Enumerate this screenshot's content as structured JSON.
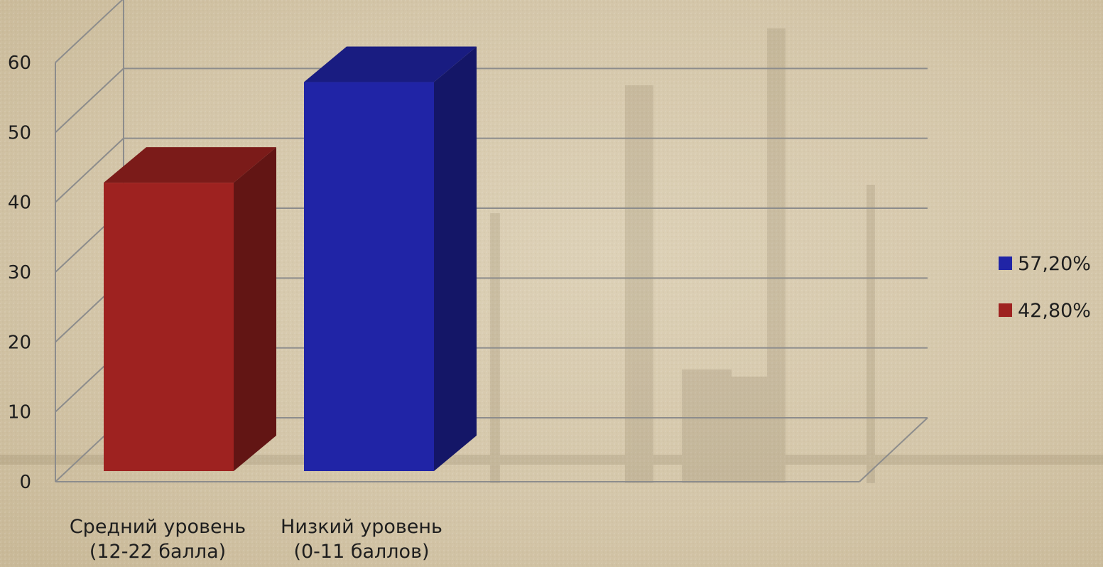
{
  "chart_data": {
    "type": "bar",
    "categories": [
      [
        "Средний уровень",
        "(12-22 балла)"
      ],
      [
        "Низкий уровень",
        "(0-11 баллов)"
      ]
    ],
    "values": [
      42.8,
      57.2
    ],
    "colors": [
      "#9e2220",
      "#2024a6"
    ],
    "ylim": [
      0,
      60
    ],
    "yticks": [
      0,
      10,
      20,
      30,
      40,
      50,
      60
    ],
    "grid": true,
    "projection": "3d",
    "legend": {
      "placement": "right",
      "entries": [
        {
          "label": "57,20%",
          "color": "#2024a6"
        },
        {
          "label": "42,80%",
          "color": "#9e2220"
        }
      ]
    },
    "title": "",
    "xlabel": "",
    "ylabel": ""
  }
}
